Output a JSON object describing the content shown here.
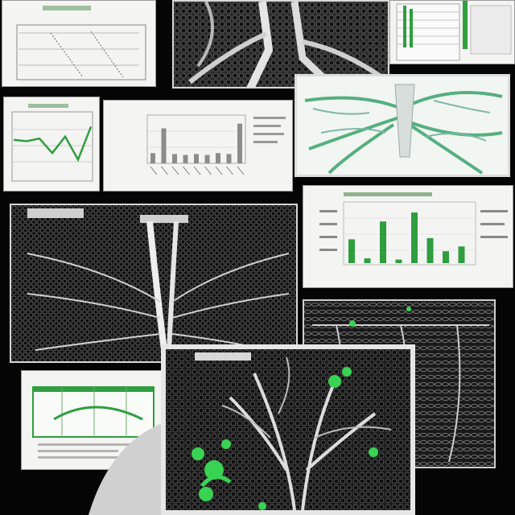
{
  "palette": {
    "background": "#050505",
    "paper": "#f4f5f3",
    "chart_green": "#2f9e3f",
    "bright_green": "#39d353",
    "vein_white": "#d9d9d9",
    "dark_tissue": "#1b1b1b"
  },
  "panels": [
    {
      "kind": "line-sketch-chart"
    },
    {
      "kind": "grayscale-tree-micrograph"
    },
    {
      "kind": "spreadsheet-with-green-bars"
    },
    {
      "kind": "small-line-chart"
    },
    {
      "kind": "gray-bar-chart"
    },
    {
      "kind": "green-tinted-tree-render"
    },
    {
      "kind": "large-dark-vein-micrograph"
    },
    {
      "kind": "green-bar-chart"
    },
    {
      "kind": "dark-mesh-micrograph"
    },
    {
      "kind": "green-table-card"
    },
    {
      "kind": "green-highlight-tree-micrograph"
    }
  ],
  "charts": {
    "small_line": {
      "values": [
        60,
        58,
        62,
        40,
        65,
        30,
        80
      ]
    },
    "gray_bars": {
      "values": [
        22,
        75,
        20,
        18,
        20,
        18,
        22,
        20,
        85
      ]
    },
    "green_bars": {
      "values": [
        40,
        8,
        70,
        6,
        85,
        42,
        20,
        28
      ]
    }
  }
}
